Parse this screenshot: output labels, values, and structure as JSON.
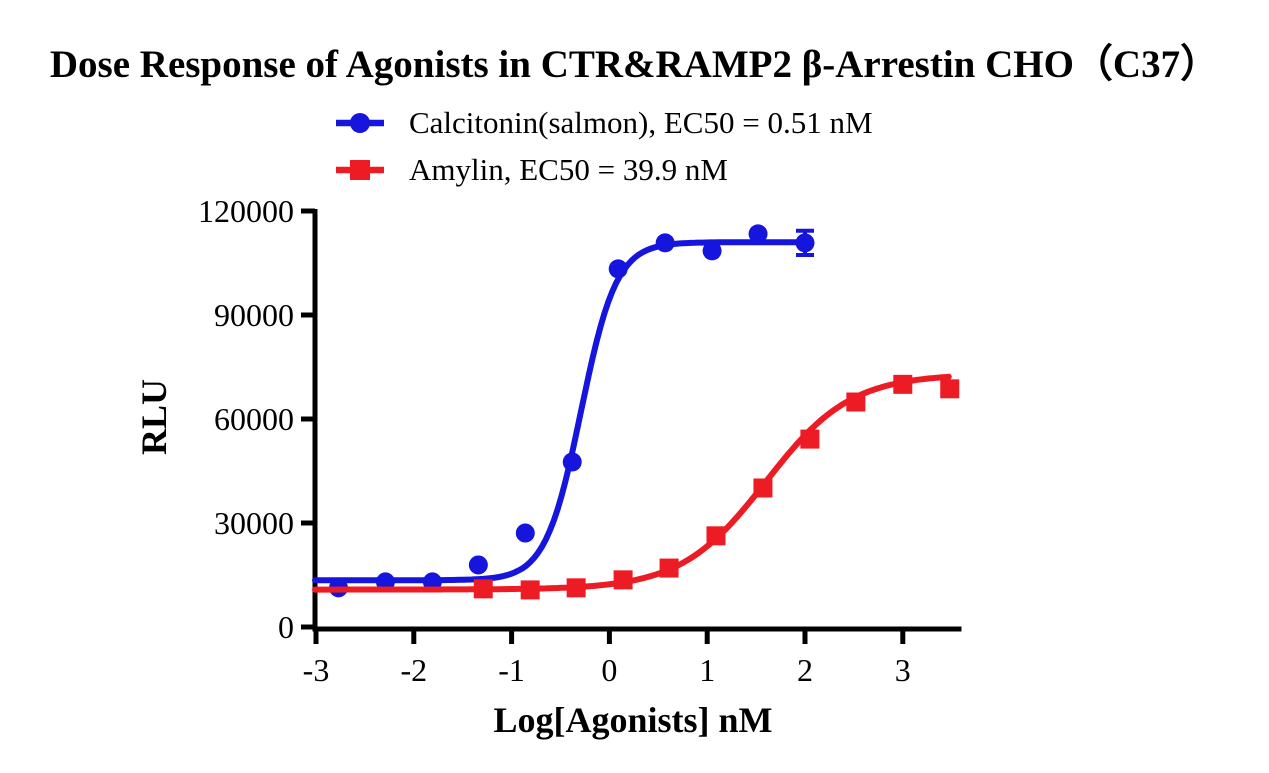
{
  "chart": {
    "title": "Dose Response of Agonists in CTR&RAMP2 β-Arrestin CHO（C37）",
    "y_axis_title": "RLU",
    "x_axis_title": "Log[Agonists] nM"
  },
  "chart_data": {
    "type": "line",
    "title": "Dose Response of Agonists in CTR&RAMP2 β-Arrestin CHO（C37）",
    "xlabel": "Log[Agonists] nM",
    "ylabel": "RLU",
    "xlim": [
      -3.0,
      3.6
    ],
    "ylim": [
      0,
      120000
    ],
    "x_ticks": [
      -3,
      -2,
      -1,
      0,
      1,
      2,
      3
    ],
    "y_ticks": [
      0,
      30000,
      60000,
      90000,
      120000
    ],
    "grid": false,
    "legend_position": "top",
    "axis_color": "#000000",
    "series": [
      {
        "name": "Calcitonin(salmon), EC50 = 0.51 nM",
        "ec50_nM": 0.51,
        "color": "#1515dd",
        "marker": "circle",
        "x": [
          -2.77,
          -2.29,
          -1.81,
          -1.34,
          -0.86,
          -0.38,
          0.09,
          0.57,
          1.05,
          1.52,
          2.0
        ],
        "y": [
          11300,
          13000,
          13000,
          17900,
          27100,
          47600,
          103300,
          110800,
          108500,
          113400,
          110800
        ],
        "error_bars": [
          {
            "index": 10,
            "plus": 3500,
            "minus": 3500
          }
        ],
        "fit": {
          "model": "4PL",
          "bottom": 13500,
          "top": 111000,
          "logEC50": -0.29,
          "hill": 2.4,
          "range": [
            -3.01,
            2.0
          ]
        }
      },
      {
        "name": "Amylin, EC50 = 39.9 nM",
        "ec50_nM": 39.9,
        "color": "#ed1c24",
        "marker": "square",
        "x": [
          -1.29,
          -0.81,
          -0.34,
          0.14,
          0.61,
          1.09,
          1.57,
          2.05,
          2.52,
          3.0,
          3.48
        ],
        "y": [
          11000,
          10700,
          11300,
          13600,
          17000,
          26300,
          40100,
          54200,
          64900,
          70000,
          68700
        ],
        "error_bars": [],
        "fit": {
          "model": "4PL",
          "bottom": 10800,
          "top": 73000,
          "logEC50": 1.6,
          "hill": 1.0,
          "range": [
            -3.01,
            3.48
          ]
        }
      }
    ]
  }
}
